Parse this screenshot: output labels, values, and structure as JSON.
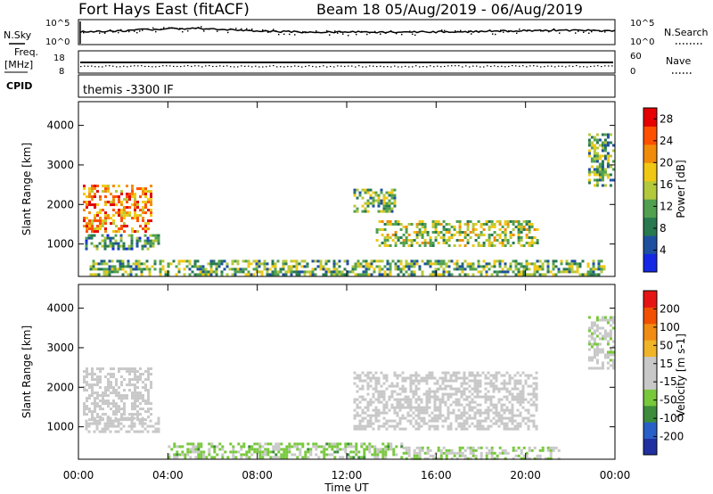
{
  "header": {
    "site": "Fort Hays East (fitACF)",
    "beam_date": "Beam 18 05/Aug/2019 - 06/Aug/2019"
  },
  "strips": {
    "nsky_label": "N.Sky",
    "nsearch_label": "N.Search",
    "noise_ticks_left": [
      "10^5",
      "10^0"
    ],
    "noise_ticks_right": [
      "10^5",
      "10^0"
    ],
    "freq_label": "Freq.",
    "freq_unit": "[MHz]",
    "freq_ticks": [
      "18",
      "8"
    ],
    "nave_label": "Nave",
    "nave_ticks": [
      "60",
      "0"
    ],
    "cpid_label": "CPID",
    "cpid_value": "themis -3300 IF"
  },
  "colors": {
    "power": [
      "#1428e6",
      "#1e50a0",
      "#287850",
      "#50a050",
      "#b4c83c",
      "#f0c814",
      "#f08c0a",
      "#ff5000",
      "#e60000"
    ],
    "velocity": [
      "#2030a0",
      "#2860c8",
      "#3c8c3c",
      "#78c83c",
      "#c8c8c8",
      "#c8c8c8",
      "#f0b428",
      "#f08c14",
      "#f05000",
      "#e61414"
    ]
  },
  "chart_data": [
    {
      "type": "heatmap",
      "panel": "power",
      "ylabel": "Slant Range [km]",
      "yticks": [
        "1000",
        "2000",
        "3000",
        "4000"
      ],
      "xticks": [
        "00:00",
        "04:00",
        "08:00",
        "12:00",
        "16:00",
        "20:00",
        "00:00"
      ],
      "xlim": [
        0,
        24
      ],
      "ylim": [
        180,
        4600
      ],
      "colorbar": {
        "label": "Power [dB]",
        "ticks": [
          "4",
          "8",
          "12",
          "16",
          "20",
          "24",
          "28"
        ],
        "range": [
          0,
          30
        ]
      },
      "regions": [
        {
          "x": [
            0.2,
            3.3
          ],
          "y": [
            1300,
            2500
          ],
          "value": 22
        },
        {
          "x": [
            0.3,
            3.6
          ],
          "y": [
            850,
            1250
          ],
          "value": 10
        },
        {
          "x": [
            12.3,
            14.2
          ],
          "y": [
            1800,
            2400
          ],
          "value": 12
        },
        {
          "x": [
            13.3,
            20.5
          ],
          "y": [
            950,
            1600
          ],
          "value": 15
        },
        {
          "x": [
            0.5,
            23.5
          ],
          "y": [
            200,
            600
          ],
          "value": 12
        },
        {
          "x": [
            22.8,
            23.9
          ],
          "y": [
            2500,
            3800
          ],
          "value": 11
        }
      ]
    },
    {
      "type": "heatmap",
      "panel": "velocity",
      "ylabel": "Slant Range [km]",
      "yticks": [
        "1000",
        "2000",
        "3000",
        "4000"
      ],
      "xticks": [
        "00:00",
        "04:00",
        "08:00",
        "12:00",
        "16:00",
        "20:00",
        "00:00"
      ],
      "xlabel": "Time UT",
      "xlim": [
        0,
        24
      ],
      "ylim": [
        180,
        4600
      ],
      "colorbar": {
        "label": "Velocity [m s-1]",
        "ticks": [
          "200",
          "100",
          "50",
          "15",
          "-15",
          "-50",
          "-100",
          "-200"
        ],
        "range": [
          -250,
          250
        ]
      },
      "regions": [
        {
          "x": [
            0.2,
            3.3
          ],
          "y": [
            1200,
            2500
          ],
          "value": 0
        },
        {
          "x": [
            0.3,
            3.6
          ],
          "y": [
            850,
            1250
          ],
          "value": 0
        },
        {
          "x": [
            12.3,
            20.5
          ],
          "y": [
            950,
            2400
          ],
          "value": 0
        },
        {
          "x": [
            4.0,
            14.5
          ],
          "y": [
            200,
            600
          ],
          "value": -60
        },
        {
          "x": [
            14.5,
            21.5
          ],
          "y": [
            200,
            500
          ],
          "value": -40
        },
        {
          "x": [
            22.8,
            23.9
          ],
          "y": [
            2500,
            3800
          ],
          "value": -20
        }
      ]
    }
  ]
}
